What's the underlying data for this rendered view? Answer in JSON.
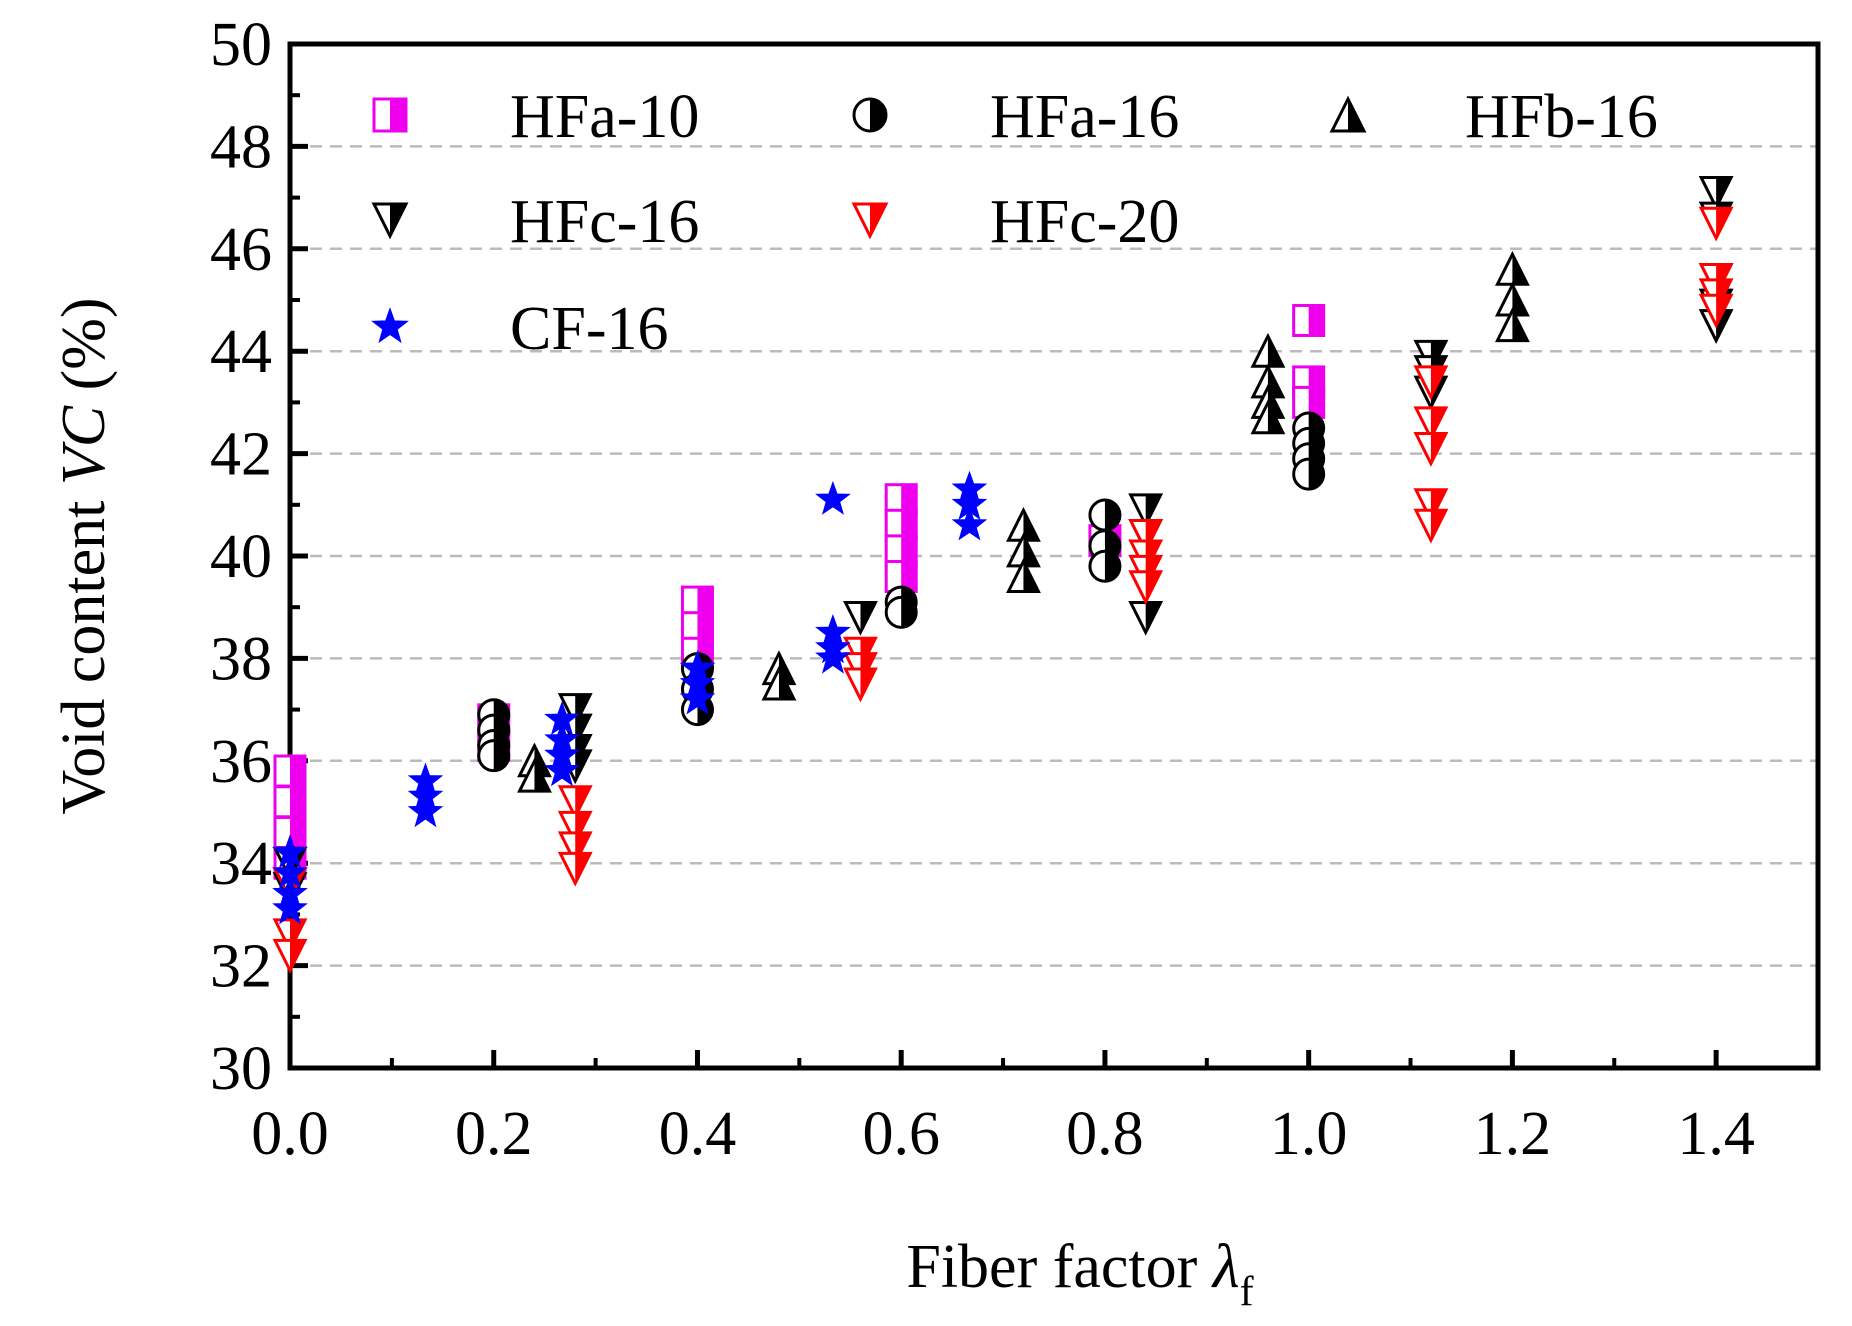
{
  "chart_data": {
    "type": "scatter",
    "title": "",
    "xlabel": "Fiber factor",
    "xlabel_symbol": "λ",
    "xlabel_subscript": "f",
    "ylabel": "Void content",
    "ylabel_symbol": "VC",
    "ylabel_unit": "(%)",
    "xlim": [
      0.0,
      1.5
    ],
    "ylim": [
      30,
      50
    ],
    "xticks": [
      "0.0",
      "0.2",
      "0.4",
      "0.6",
      "0.8",
      "1.0",
      "1.2",
      "1.4"
    ],
    "yticks": [
      "30",
      "32",
      "34",
      "36",
      "38",
      "40",
      "42",
      "44",
      "46",
      "48",
      "50"
    ],
    "grid": "horizontal dashed",
    "legend_position": "top-left",
    "series": [
      {
        "name": "HFa-10",
        "marker": "half-filled-square",
        "color": "#ee00ee",
        "points": [
          [
            0.0,
            35.8
          ],
          [
            0.0,
            35.2
          ],
          [
            0.0,
            34.6
          ],
          [
            0.0,
            34.0
          ],
          [
            0.2,
            36.8
          ],
          [
            0.2,
            36.3
          ],
          [
            0.4,
            39.1
          ],
          [
            0.4,
            38.6
          ],
          [
            0.4,
            38.1
          ],
          [
            0.6,
            41.1
          ],
          [
            0.6,
            40.6
          ],
          [
            0.6,
            40.1
          ],
          [
            0.6,
            39.6
          ],
          [
            0.8,
            40.3
          ],
          [
            1.0,
            44.6
          ],
          [
            1.0,
            43.4
          ],
          [
            1.0,
            43.0
          ]
        ]
      },
      {
        "name": "HFa-16",
        "marker": "half-filled-circle",
        "color": "#000000",
        "points": [
          [
            0.2,
            36.9
          ],
          [
            0.2,
            36.6
          ],
          [
            0.2,
            36.3
          ],
          [
            0.2,
            36.1
          ],
          [
            0.4,
            37.8
          ],
          [
            0.4,
            37.4
          ],
          [
            0.4,
            37.0
          ],
          [
            0.6,
            39.1
          ],
          [
            0.6,
            38.9
          ],
          [
            0.8,
            40.8
          ],
          [
            0.8,
            40.2
          ],
          [
            0.8,
            39.8
          ],
          [
            1.0,
            42.5
          ],
          [
            1.0,
            42.2
          ],
          [
            1.0,
            41.9
          ],
          [
            1.0,
            41.6
          ]
        ]
      },
      {
        "name": "HFb-16",
        "marker": "half-filled-triangle-up",
        "color": "#000000",
        "points": [
          [
            0.24,
            36.0
          ],
          [
            0.24,
            35.7
          ],
          [
            0.48,
            37.8
          ],
          [
            0.48,
            37.5
          ],
          [
            0.72,
            40.6
          ],
          [
            0.72,
            40.1
          ],
          [
            0.72,
            39.6
          ],
          [
            0.96,
            44.0
          ],
          [
            0.96,
            43.4
          ],
          [
            0.96,
            43.0
          ],
          [
            0.96,
            42.7
          ],
          [
            1.2,
            45.6
          ],
          [
            1.2,
            45.0
          ],
          [
            1.2,
            44.5
          ]
        ]
      },
      {
        "name": "HFc-16",
        "marker": "half-filled-triangle-down",
        "color": "#000000",
        "points": [
          [
            0.0,
            34.0
          ],
          [
            0.0,
            33.5
          ],
          [
            0.28,
            37.0
          ],
          [
            0.28,
            36.6
          ],
          [
            0.28,
            36.2
          ],
          [
            0.28,
            35.9
          ],
          [
            0.56,
            38.8
          ],
          [
            0.84,
            40.9
          ],
          [
            0.84,
            40.4
          ],
          [
            0.84,
            38.8
          ],
          [
            1.12,
            43.9
          ],
          [
            1.12,
            43.6
          ],
          [
            1.12,
            43.2
          ],
          [
            1.4,
            47.1
          ],
          [
            1.4,
            46.6
          ],
          [
            1.4,
            45.4
          ],
          [
            1.4,
            44.9
          ],
          [
            1.4,
            44.5
          ]
        ]
      },
      {
        "name": "HFc-20",
        "marker": "half-filled-triangle-down",
        "color": "#ff0000",
        "points": [
          [
            0.0,
            33.6
          ],
          [
            0.0,
            32.6
          ],
          [
            0.0,
            32.2
          ],
          [
            0.28,
            35.2
          ],
          [
            0.28,
            34.7
          ],
          [
            0.28,
            34.3
          ],
          [
            0.28,
            33.9
          ],
          [
            0.56,
            38.1
          ],
          [
            0.56,
            37.8
          ],
          [
            0.56,
            37.5
          ],
          [
            0.84,
            40.4
          ],
          [
            0.84,
            40.0
          ],
          [
            0.84,
            39.7
          ],
          [
            0.84,
            39.4
          ],
          [
            1.12,
            43.4
          ],
          [
            1.12,
            42.6
          ],
          [
            1.12,
            42.1
          ],
          [
            1.12,
            41.0
          ],
          [
            1.12,
            40.6
          ],
          [
            1.4,
            46.5
          ],
          [
            1.4,
            45.4
          ],
          [
            1.4,
            45.1
          ],
          [
            1.4,
            44.8
          ]
        ]
      },
      {
        "name": "CF-16",
        "marker": "star",
        "color": "#0000ff",
        "points": [
          [
            0.0,
            34.2
          ],
          [
            0.0,
            33.8
          ],
          [
            0.0,
            33.4
          ],
          [
            0.0,
            33.1
          ],
          [
            0.133,
            35.6
          ],
          [
            0.133,
            35.3
          ],
          [
            0.133,
            35.0
          ],
          [
            0.267,
            36.8
          ],
          [
            0.267,
            36.4
          ],
          [
            0.267,
            36.1
          ],
          [
            0.267,
            35.8
          ],
          [
            0.4,
            37.8
          ],
          [
            0.4,
            37.5
          ],
          [
            0.4,
            37.2
          ],
          [
            0.533,
            41.1
          ],
          [
            0.533,
            38.5
          ],
          [
            0.533,
            38.2
          ],
          [
            0.533,
            38.0
          ],
          [
            0.667,
            41.3
          ],
          [
            0.667,
            41.0
          ],
          [
            0.667,
            40.6
          ]
        ]
      }
    ]
  }
}
